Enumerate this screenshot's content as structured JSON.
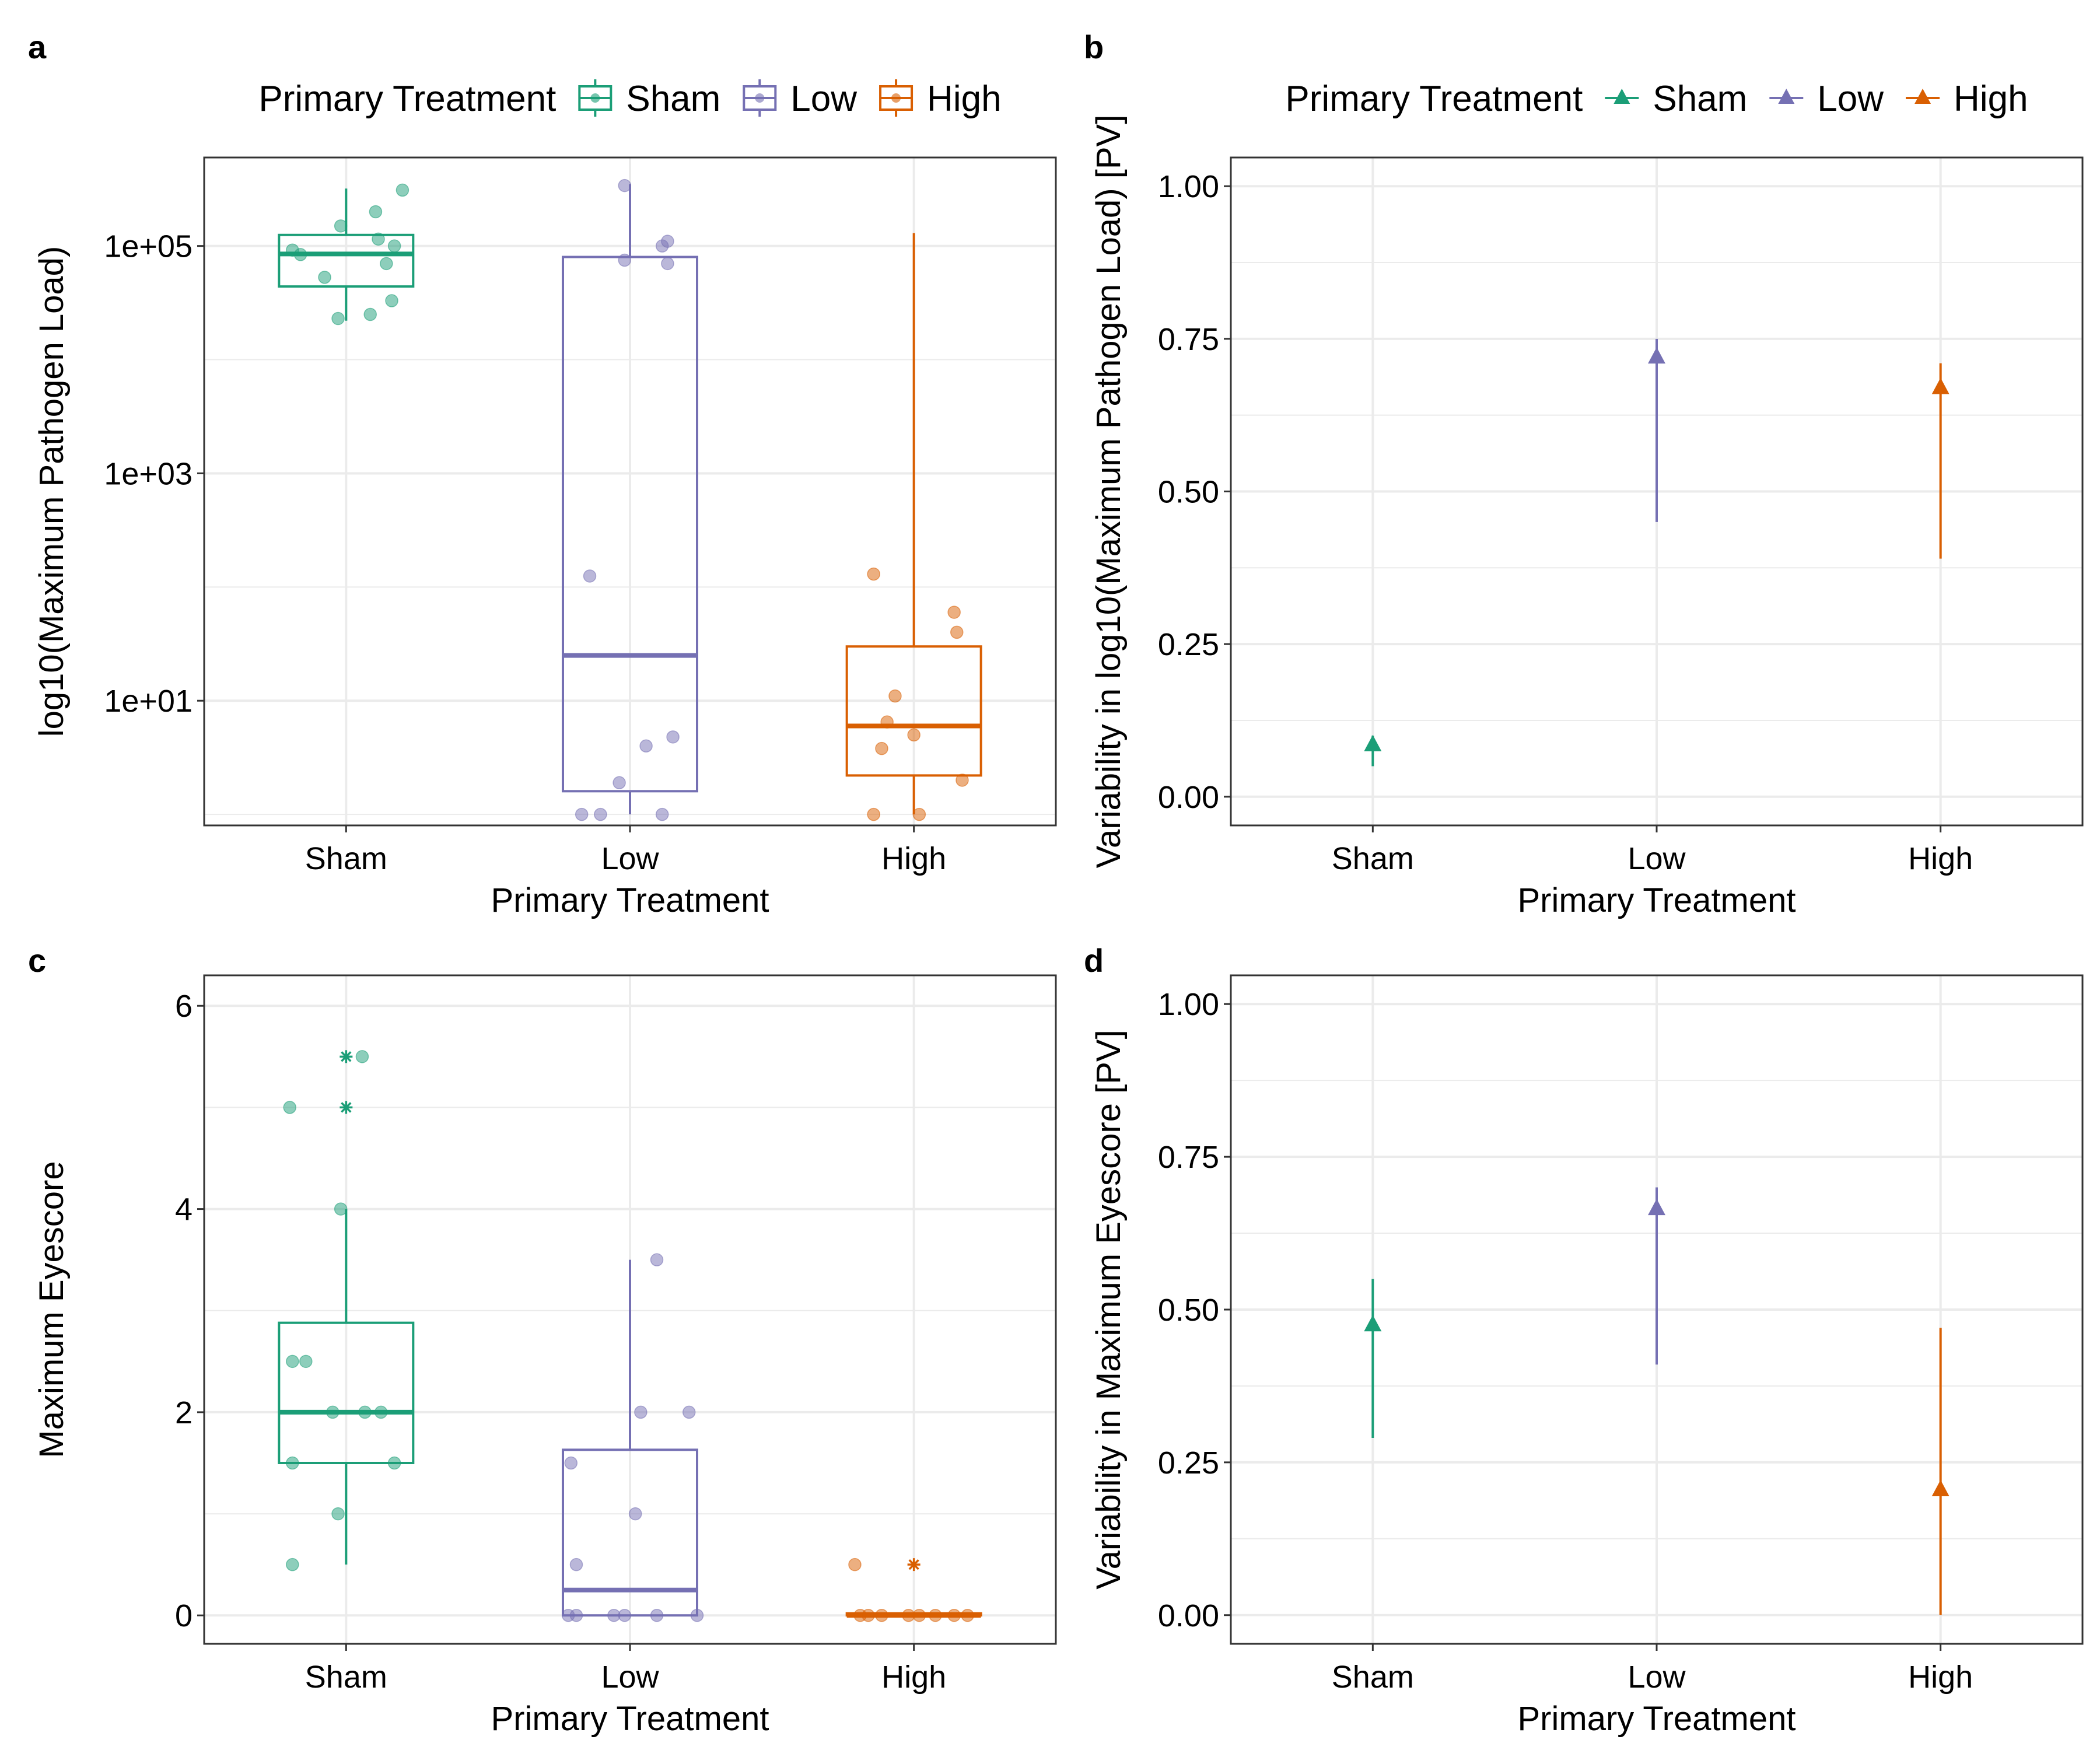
{
  "colors": {
    "sham": "#1b9e77",
    "low": "#7570b3",
    "high": "#d95f02",
    "grid": "#ebebeb",
    "panel_border": "#333333"
  },
  "chart_data": [
    {
      "id": "a",
      "type": "boxplot",
      "panel_letter": "a",
      "legend": {
        "title": "Primary Treatment",
        "position": "top",
        "glyph": "box",
        "entries": [
          "Sham",
          "Low",
          "High"
        ]
      },
      "xlabel": "Primary Treatment",
      "ylabel": "log10(Maximum Pathogen Load)",
      "yscale": "log10",
      "ylim": [
        0.8,
        600000
      ],
      "yticks": [
        10,
        1000,
        100000
      ],
      "ytick_labels": [
        "1e+01",
        "1e+03",
        "1e+05"
      ],
      "yminor": [
        1,
        100,
        10000
      ],
      "categories": [
        "Sham",
        "Low",
        "High"
      ],
      "series": [
        {
          "name": "Sham",
          "color_key": "sham",
          "box": {
            "lower_whisker": 22000,
            "q1": 44000,
            "median": 85000,
            "q3": 125000,
            "upper_whisker": 320000
          },
          "points": [
            [
              -0.2,
              92000
            ],
            [
              -0.17,
              84000
            ],
            [
              -0.08,
              53000
            ],
            [
              -0.03,
              23000
            ],
            [
              -0.02,
              150000
            ],
            [
              0.09,
              25000
            ],
            [
              0.11,
              200000
            ],
            [
              0.12,
              115000
            ],
            [
              0.15,
              70000
            ],
            [
              0.17,
              33000
            ],
            [
              0.18,
              100000
            ],
            [
              0.21,
              310000
            ]
          ],
          "outliers": []
        },
        {
          "name": "Low",
          "color_key": "low",
          "box": {
            "lower_whisker": 1,
            "q1": 1.6,
            "median": 25,
            "q3": 80000,
            "upper_whisker": 350000
          },
          "points": [
            [
              -0.18,
              1
            ],
            [
              -0.15,
              125
            ],
            [
              -0.11,
              1
            ],
            [
              -0.04,
              1.9
            ],
            [
              -0.02,
              75000
            ],
            [
              -0.02,
              340000
            ],
            [
              0.06,
              4
            ],
            [
              0.12,
              1
            ],
            [
              0.12,
              100000
            ],
            [
              0.14,
              110000
            ],
            [
              0.14,
              70000
            ],
            [
              0.16,
              4.8
            ]
          ],
          "outliers": []
        },
        {
          "name": "High",
          "color_key": "high",
          "box": {
            "lower_whisker": 1,
            "q1": 2.2,
            "median": 6,
            "q3": 30,
            "upper_whisker": 130000
          },
          "points": [
            [
              -0.15,
              1
            ],
            [
              -0.15,
              130
            ],
            [
              -0.12,
              3.8
            ],
            [
              -0.1,
              6.5
            ],
            [
              -0.07,
              11
            ],
            [
              0,
              5
            ],
            [
              0.02,
              1
            ],
            [
              0.15,
              60
            ],
            [
              0.16,
              40
            ],
            [
              0.18,
              2
            ]
          ],
          "outliers": []
        }
      ]
    },
    {
      "id": "b",
      "type": "pointrange",
      "panel_letter": "b",
      "legend": {
        "title": "Primary Treatment",
        "position": "top",
        "glyph": "triangle",
        "entries": [
          "Sham",
          "Low",
          "High"
        ]
      },
      "xlabel": "Primary Treatment",
      "ylabel": "Variability in log10(Maximum Pathogen Load) [PV]",
      "ylim": [
        -0.047,
        1.047
      ],
      "yticks": [
        0,
        0.25,
        0.5,
        0.75,
        1
      ],
      "ytick_labels": [
        "0.00",
        "0.25",
        "0.50",
        "0.75",
        "1.00"
      ],
      "yminor": [
        0.125,
        0.375,
        0.625,
        0.875
      ],
      "categories": [
        "Sham",
        "Low",
        "High"
      ],
      "series": [
        {
          "name": "Sham",
          "color_key": "sham",
          "value": 0.085,
          "lower": 0.05,
          "upper": 0.1
        },
        {
          "name": "Low",
          "color_key": "low",
          "value": 0.72,
          "lower": 0.45,
          "upper": 0.75
        },
        {
          "name": "High",
          "color_key": "high",
          "value": 0.67,
          "lower": 0.39,
          "upper": 0.71
        }
      ]
    },
    {
      "id": "c",
      "type": "boxplot",
      "panel_letter": "c",
      "xlabel": "Primary Treatment",
      "ylabel": "Maximum Eyescore",
      "yscale": "linear",
      "ylim": [
        -0.28,
        6.3
      ],
      "yticks": [
        0,
        2,
        4,
        6
      ],
      "ytick_labels": [
        "0",
        "2",
        "4",
        "6"
      ],
      "yminor": [
        1,
        3,
        5
      ],
      "categories": [
        "Sham",
        "Low",
        "High"
      ],
      "series": [
        {
          "name": "Sham",
          "color_key": "sham",
          "box": {
            "lower_whisker": 0.5,
            "q1": 1.5,
            "median": 2,
            "q3": 2.88,
            "upper_whisker": 4
          },
          "points": [
            [
              -0.2,
              0.5
            ],
            [
              -0.21,
              5
            ],
            [
              -0.2,
              1.5
            ],
            [
              -0.2,
              2.5
            ],
            [
              -0.15,
              2.5
            ],
            [
              -0.05,
              2
            ],
            [
              -0.03,
              1
            ],
            [
              -0.02,
              4
            ],
            [
              0.06,
              5.5
            ],
            [
              0.07,
              2
            ],
            [
              0.13,
              2
            ],
            [
              0.18,
              1.5
            ]
          ],
          "outliers": [
            [
              0,
              5.5
            ],
            [
              0,
              5
            ]
          ]
        },
        {
          "name": "Low",
          "color_key": "low",
          "box": {
            "lower_whisker": 0,
            "q1": 0,
            "median": 0.25,
            "q3": 1.63,
            "upper_whisker": 3.5
          },
          "points": [
            [
              -0.22,
              1.5
            ],
            [
              -0.2,
              0.5
            ],
            [
              -0.2,
              0
            ],
            [
              -0.23,
              0
            ],
            [
              -0.06,
              0
            ],
            [
              -0.02,
              0
            ],
            [
              0.02,
              1
            ],
            [
              0.04,
              2
            ],
            [
              0.1,
              0
            ],
            [
              0.1,
              3.5
            ],
            [
              0.22,
              2
            ],
            [
              0.25,
              0
            ]
          ],
          "outliers": []
        },
        {
          "name": "High",
          "color_key": "high",
          "box": {
            "lower_whisker": 0,
            "q1": 0,
            "median": 0,
            "q3": 0.02,
            "upper_whisker": 0.02
          },
          "points": [
            [
              -0.22,
              0.5
            ],
            [
              -0.2,
              0
            ],
            [
              -0.17,
              0
            ],
            [
              -0.12,
              0
            ],
            [
              -0.02,
              0
            ],
            [
              0.02,
              0
            ],
            [
              0.08,
              0
            ],
            [
              0.15,
              0
            ],
            [
              0.2,
              0
            ]
          ],
          "outliers": [
            [
              0,
              0.5
            ]
          ]
        }
      ]
    },
    {
      "id": "d",
      "type": "pointrange",
      "panel_letter": "d",
      "xlabel": "Primary Treatment",
      "ylabel": "Variability in Maximum Eyescore [PV]",
      "ylim": [
        -0.047,
        1.047
      ],
      "yticks": [
        0,
        0.25,
        0.5,
        0.75,
        1
      ],
      "ytick_labels": [
        "0.00",
        "0.25",
        "0.50",
        "0.75",
        "1.00"
      ],
      "yminor": [
        0.125,
        0.375,
        0.625,
        0.875
      ],
      "categories": [
        "Sham",
        "Low",
        "High"
      ],
      "series": [
        {
          "name": "Sham",
          "color_key": "sham",
          "value": 0.475,
          "lower": 0.29,
          "upper": 0.55
        },
        {
          "name": "Low",
          "color_key": "low",
          "value": 0.665,
          "lower": 0.41,
          "upper": 0.7
        },
        {
          "name": "High",
          "color_key": "high",
          "value": 0.205,
          "lower": 0,
          "upper": 0.47
        }
      ]
    }
  ]
}
